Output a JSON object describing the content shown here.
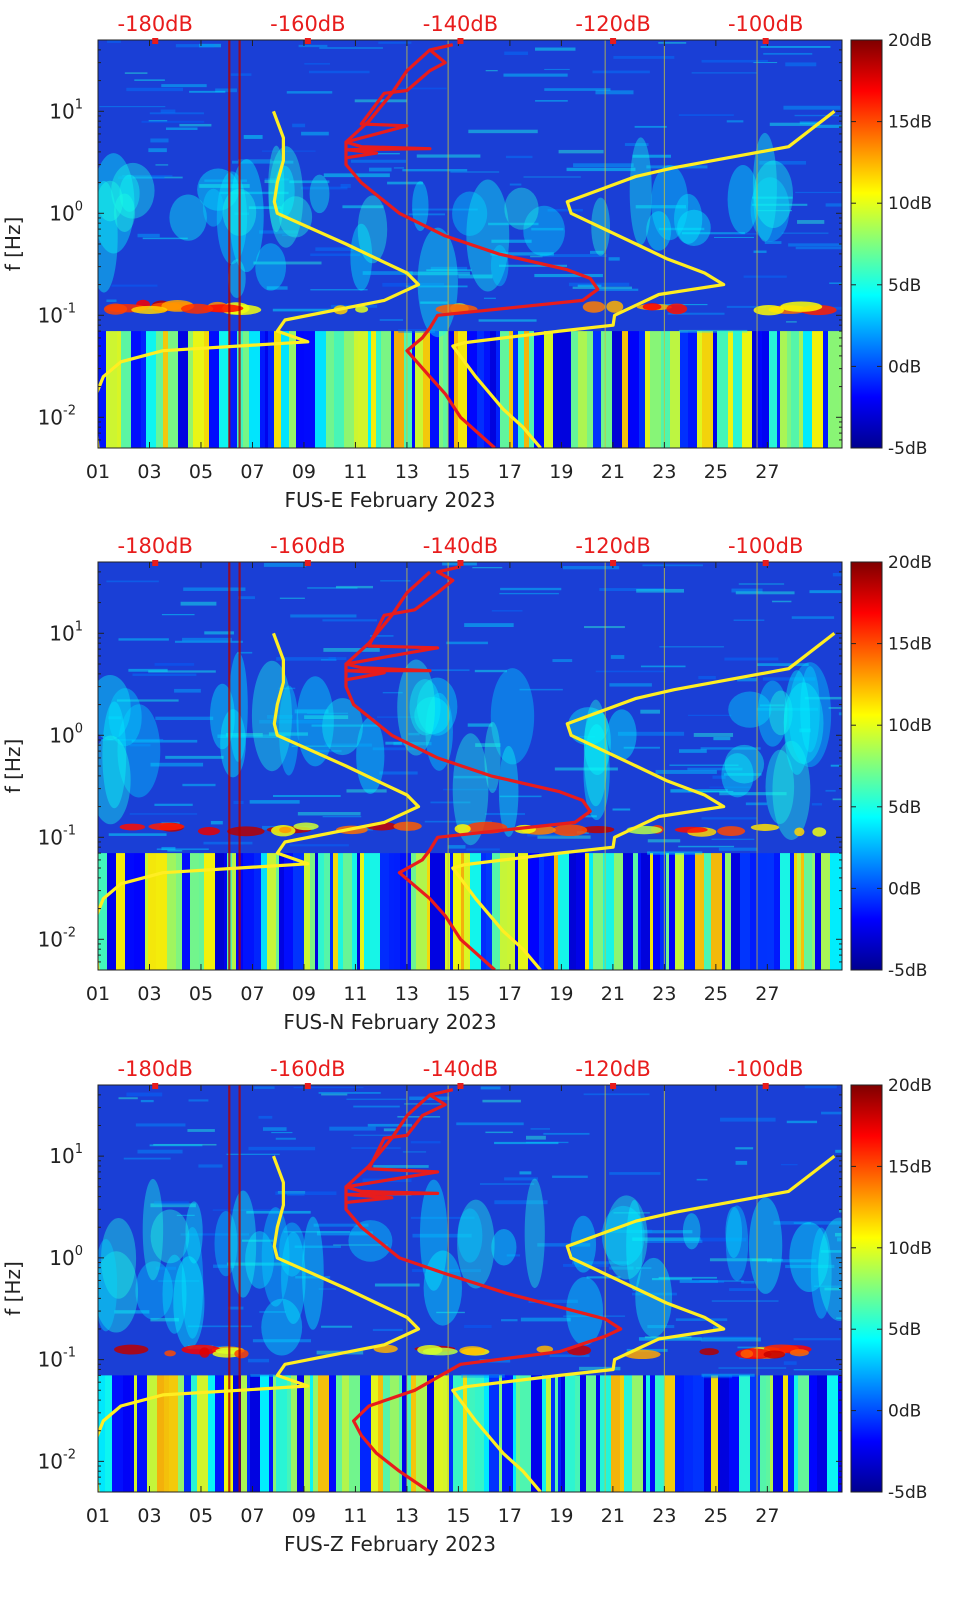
{
  "chart_data": [
    {
      "type": "heatmap",
      "xlabel": "FUS-E February 2023",
      "ylabel": "f [Hz]",
      "x_ticks": [
        "01",
        "03",
        "05",
        "07",
        "09",
        "11",
        "13",
        "15",
        "17",
        "19",
        "21",
        "23",
        "25",
        "27"
      ],
      "y_ticks": [
        "10^-2",
        "10^-1",
        "10^0",
        "10^1"
      ],
      "top_ticks": [
        "-180dB",
        "-160dB",
        "-140dB",
        "-120dB",
        "-100dB"
      ],
      "colorbar": {
        "ticks": [
          "-5dB",
          "0dB",
          "5dB",
          "10dB",
          "15dB",
          "20dB"
        ],
        "range": [
          -5,
          20
        ],
        "colormap": "jet"
      },
      "xlim_days": [
        1,
        29.9
      ],
      "ylim_hz": [
        0.005,
        50
      ],
      "topaxis_db_range": [
        -187.5,
        -90
      ],
      "series": [
        {
          "color": "#ffee22",
          "points": [
            [
              -187.5,
              0.005
            ],
            [
              -187.8,
              0.009
            ],
            [
              -188,
              0.015
            ],
            [
              -186.8,
              0.025
            ],
            [
              -184.5,
              0.035
            ],
            [
              -179,
              0.045
            ],
            [
              -169,
              0.05
            ],
            [
              -160,
              0.055
            ],
            [
              -164,
              0.07
            ],
            [
              -163,
              0.09
            ],
            [
              -150,
              0.14
            ],
            [
              -145.5,
              0.2
            ],
            [
              -147,
              0.26
            ],
            [
              -151,
              0.36
            ],
            [
              -155,
              0.5
            ],
            [
              -164,
              1.0
            ],
            [
              -164.4,
              1.3
            ],
            [
              -164,
              2.0
            ],
            [
              -163.2,
              3.3
            ],
            [
              -163.2,
              5.5
            ],
            [
              -164.5,
              10
            ]
          ]
        },
        {
          "color": "#ffee22",
          "points": [
            [
              -129.5,
              0.005
            ],
            [
              -131.8,
              0.008
            ],
            [
              -134.4,
              0.012
            ],
            [
              -138,
              0.025
            ],
            [
              -141,
              0.05
            ],
            [
              -139.4,
              0.054
            ],
            [
              -127,
              0.07
            ],
            [
              -120,
              0.08
            ],
            [
              -119.8,
              0.1
            ],
            [
              -114,
              0.16
            ],
            [
              -105.5,
              0.2
            ],
            [
              -108,
              0.26
            ],
            [
              -113,
              0.36
            ],
            [
              -117,
              0.5
            ],
            [
              -125.5,
              1.0
            ],
            [
              -126,
              1.3
            ],
            [
              -117,
              2.3
            ],
            [
              -112,
              2.8
            ],
            [
              -97,
              4.5
            ],
            [
              -91,
              10
            ]
          ]
        },
        {
          "color": "#e81c1c",
          "points": [
            [
              -135.5,
              0.005
            ],
            [
              -140,
              0.01
            ],
            [
              -142,
              0.017
            ],
            [
              -144,
              0.025
            ],
            [
              -147,
              0.045
            ],
            [
              -145,
              0.06
            ],
            [
              -144,
              0.075
            ],
            [
              -143,
              0.1
            ],
            [
              -124,
              0.14
            ],
            [
              -122,
              0.18
            ],
            [
              -123,
              0.23
            ],
            [
              -126,
              0.28
            ],
            [
              -135,
              0.4
            ],
            [
              -142,
              0.6
            ],
            [
              -148,
              1.0
            ],
            [
              -153,
              2
            ],
            [
              -155,
              3
            ],
            [
              -155,
              5
            ],
            [
              -152,
              8
            ],
            [
              -149,
              15
            ],
            [
              -147,
              25
            ],
            [
              -144,
              40
            ]
          ]
        },
        {
          "color": "#e81c1c",
          "points": [
            [
              -155,
              3.5
            ],
            [
              -151,
              3.9
            ],
            [
              -155,
              4.2
            ],
            [
              -144,
              4.3
            ],
            [
              -153,
              4.5
            ],
            [
              -155,
              5
            ],
            [
              -147,
              7.2
            ],
            [
              -153,
              7.5
            ],
            [
              -150,
              15
            ],
            [
              -147,
              16
            ],
            [
              -144,
              25
            ],
            [
              -142,
              30
            ],
            [
              -144,
              40
            ],
            [
              -141,
              45
            ]
          ]
        }
      ]
    },
    {
      "type": "heatmap",
      "xlabel": "FUS-N February 2023",
      "ylabel": "f [Hz]",
      "x_ticks": [
        "01",
        "03",
        "05",
        "07",
        "09",
        "11",
        "13",
        "15",
        "17",
        "19",
        "21",
        "23",
        "25",
        "27"
      ],
      "y_ticks": [
        "10^-2",
        "10^-1",
        "10^0",
        "10^1"
      ],
      "top_ticks": [
        "-180dB",
        "-160dB",
        "-140dB",
        "-120dB",
        "-100dB"
      ],
      "colorbar": {
        "ticks": [
          "-5dB",
          "0dB",
          "5dB",
          "10dB",
          "15dB",
          "20dB"
        ],
        "range": [
          -5,
          20
        ],
        "colormap": "jet"
      },
      "xlim_days": [
        1,
        29.9
      ],
      "ylim_hz": [
        0.005,
        50
      ],
      "topaxis_db_range": [
        -187.5,
        -90
      ],
      "series": [
        {
          "color": "#ffee22",
          "points": [
            [
              -187.5,
              0.005
            ],
            [
              -187.8,
              0.009
            ],
            [
              -188,
              0.015
            ],
            [
              -186.8,
              0.025
            ],
            [
              -184.5,
              0.035
            ],
            [
              -179,
              0.045
            ],
            [
              -169,
              0.05
            ],
            [
              -160,
              0.055
            ],
            [
              -164,
              0.07
            ],
            [
              -163,
              0.09
            ],
            [
              -150,
              0.14
            ],
            [
              -145.5,
              0.2
            ],
            [
              -147,
              0.26
            ],
            [
              -151,
              0.36
            ],
            [
              -155,
              0.5
            ],
            [
              -164,
              1.0
            ],
            [
              -164.4,
              1.3
            ],
            [
              -164,
              2.0
            ],
            [
              -163.2,
              3.3
            ],
            [
              -163.2,
              5.5
            ],
            [
              -164.5,
              10
            ]
          ]
        },
        {
          "color": "#ffee22",
          "points": [
            [
              -129.5,
              0.005
            ],
            [
              -131.8,
              0.008
            ],
            [
              -134.4,
              0.012
            ],
            [
              -138,
              0.025
            ],
            [
              -141,
              0.05
            ],
            [
              -139.4,
              0.054
            ],
            [
              -127,
              0.07
            ],
            [
              -120,
              0.08
            ],
            [
              -119.8,
              0.1
            ],
            [
              -114,
              0.16
            ],
            [
              -105.5,
              0.2
            ],
            [
              -108,
              0.26
            ],
            [
              -113,
              0.36
            ],
            [
              -117,
              0.5
            ],
            [
              -125.5,
              1.0
            ],
            [
              -126,
              1.3
            ],
            [
              -117,
              2.3
            ],
            [
              -112,
              2.8
            ],
            [
              -97,
              4.5
            ],
            [
              -91,
              10
            ]
          ]
        },
        {
          "color": "#e81c1c",
          "points": [
            [
              -135.5,
              0.005
            ],
            [
              -140,
              0.01
            ],
            [
              -142,
              0.017
            ],
            [
              -144,
              0.025
            ],
            [
              -148,
              0.045
            ],
            [
              -145,
              0.06
            ],
            [
              -144,
              0.075
            ],
            [
              -143,
              0.1
            ],
            [
              -125,
              0.14
            ],
            [
              -123,
              0.18
            ],
            [
              -124,
              0.23
            ],
            [
              -127,
              0.28
            ],
            [
              -136,
              0.4
            ],
            [
              -143,
              0.6
            ],
            [
              -149,
              1.0
            ],
            [
              -154,
              2
            ],
            [
              -155,
              3
            ],
            [
              -155,
              5
            ],
            [
              -152,
              8
            ],
            [
              -149,
              15
            ],
            [
              -147,
              25
            ],
            [
              -144,
              40
            ]
          ]
        },
        {
          "color": "#e81c1c",
          "points": [
            [
              -155,
              3.5
            ],
            [
              -150,
              4.1
            ],
            [
              -155,
              4.3
            ],
            [
              -144,
              4.3
            ],
            [
              -153,
              4.6
            ],
            [
              -155,
              5
            ],
            [
              -143,
              7.2
            ],
            [
              -152,
              7.5
            ],
            [
              -150,
              15
            ],
            [
              -146,
              17
            ],
            [
              -143,
              25
            ],
            [
              -141,
              33
            ],
            [
              -143,
              40
            ],
            [
              -140,
              45
            ]
          ]
        }
      ]
    },
    {
      "type": "heatmap",
      "xlabel": "FUS-Z February 2023",
      "ylabel": "f [Hz]",
      "x_ticks": [
        "01",
        "03",
        "05",
        "07",
        "09",
        "11",
        "13",
        "15",
        "17",
        "19",
        "21",
        "23",
        "25",
        "27"
      ],
      "y_ticks": [
        "10^-2",
        "10^-1",
        "10^0",
        "10^1"
      ],
      "top_ticks": [
        "-180dB",
        "-160dB",
        "-140dB",
        "-120dB",
        "-100dB"
      ],
      "colorbar": {
        "ticks": [
          "-5dB",
          "0dB",
          "5dB",
          "10dB",
          "15dB",
          "20dB"
        ],
        "range": [
          -5,
          20
        ],
        "colormap": "jet"
      },
      "xlim_days": [
        1,
        29.9
      ],
      "ylim_hz": [
        0.005,
        50
      ],
      "topaxis_db_range": [
        -187.5,
        -90
      ],
      "series": [
        {
          "color": "#ffee22",
          "points": [
            [
              -187.5,
              0.005
            ],
            [
              -187.8,
              0.009
            ],
            [
              -188,
              0.015
            ],
            [
              -186.8,
              0.025
            ],
            [
              -184.5,
              0.035
            ],
            [
              -179,
              0.045
            ],
            [
              -169,
              0.05
            ],
            [
              -160,
              0.055
            ],
            [
              -164,
              0.07
            ],
            [
              -163,
              0.09
            ],
            [
              -150,
              0.14
            ],
            [
              -145.5,
              0.2
            ],
            [
              -147,
              0.26
            ],
            [
              -151,
              0.36
            ],
            [
              -155,
              0.5
            ],
            [
              -164,
              1.0
            ],
            [
              -164.4,
              1.3
            ],
            [
              -164,
              2.0
            ],
            [
              -163.2,
              3.3
            ],
            [
              -163.2,
              5.5
            ],
            [
              -164.5,
              10
            ]
          ]
        },
        {
          "color": "#ffee22",
          "points": [
            [
              -129.5,
              0.005
            ],
            [
              -131.8,
              0.008
            ],
            [
              -134.4,
              0.012
            ],
            [
              -138,
              0.025
            ],
            [
              -141,
              0.05
            ],
            [
              -139.4,
              0.054
            ],
            [
              -127,
              0.07
            ],
            [
              -120,
              0.08
            ],
            [
              -119.8,
              0.1
            ],
            [
              -114,
              0.16
            ],
            [
              -105.5,
              0.2
            ],
            [
              -108,
              0.26
            ],
            [
              -113,
              0.36
            ],
            [
              -117,
              0.5
            ],
            [
              -125.5,
              1.0
            ],
            [
              -126,
              1.3
            ],
            [
              -117,
              2.3
            ],
            [
              -112,
              2.8
            ],
            [
              -97,
              4.5
            ],
            [
              -91,
              10
            ]
          ]
        },
        {
          "color": "#e81c1c",
          "points": [
            [
              -144,
              0.005
            ],
            [
              -148,
              0.008
            ],
            [
              -151,
              0.012
            ],
            [
              -153,
              0.018
            ],
            [
              -154,
              0.025
            ],
            [
              -152,
              0.035
            ],
            [
              -146,
              0.05
            ],
            [
              -140,
              0.09
            ],
            [
              -127,
              0.12
            ],
            [
              -121,
              0.17
            ],
            [
              -119,
              0.2
            ],
            [
              -121,
              0.25
            ],
            [
              -125,
              0.3
            ],
            [
              -134,
              0.45
            ],
            [
              -142,
              0.7
            ],
            [
              -148,
              1.0
            ],
            [
              -153,
              2
            ],
            [
              -155,
              3
            ],
            [
              -155,
              5
            ],
            [
              -152,
              8
            ],
            [
              -149,
              15
            ],
            [
              -147,
              25
            ],
            [
              -144,
              40
            ]
          ]
        },
        {
          "color": "#e81c1c",
          "points": [
            [
              -155,
              3.5
            ],
            [
              -149,
              3.9
            ],
            [
              -155,
              4.2
            ],
            [
              -143,
              4.3
            ],
            [
              -153,
              4.5
            ],
            [
              -155,
              5
            ],
            [
              -143,
              7.0
            ],
            [
              -152,
              7.5
            ],
            [
              -150,
              15
            ],
            [
              -147,
              16
            ],
            [
              -145,
              25
            ],
            [
              -142,
              32
            ],
            [
              -144,
              40
            ],
            [
              -141,
              45
            ]
          ]
        }
      ]
    }
  ]
}
